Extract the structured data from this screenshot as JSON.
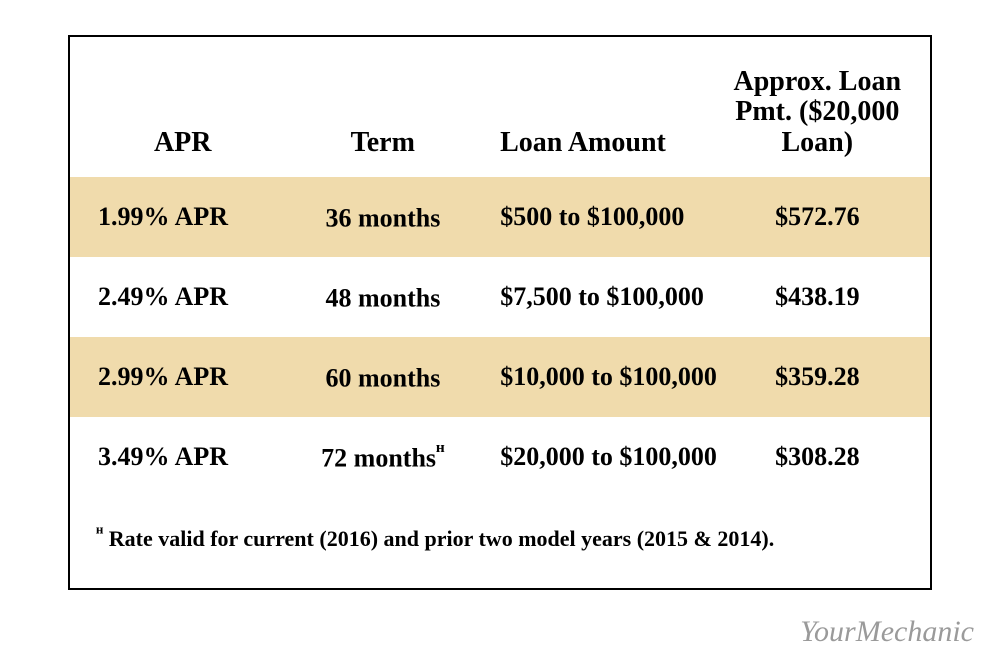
{
  "table": {
    "columns": [
      {
        "key": "apr",
        "label": "APR"
      },
      {
        "key": "term",
        "label": "Term"
      },
      {
        "key": "amount",
        "label": "Loan Amount"
      },
      {
        "key": "pmt",
        "label": "Approx. Loan Pmt. ($20,000 Loan)"
      }
    ],
    "rows": [
      {
        "apr": "1.99% APR",
        "term": "36 months",
        "term_note": "",
        "amount": "$500 to $100,000",
        "pmt": "$572.76",
        "highlight": true
      },
      {
        "apr": "2.49% APR",
        "term": "48 months",
        "term_note": "",
        "amount": "$7,500 to $100,000",
        "pmt": "$438.19",
        "highlight": false
      },
      {
        "apr": "2.99% APR",
        "term": "60 months",
        "term_note": "",
        "amount": "$10,000 to $100,000",
        "pmt": "$359.28",
        "highlight": true
      },
      {
        "apr": "3.49% APR",
        "term": "72 months",
        "term_note": "ᴴ",
        "amount": "$20,000 to $100,000",
        "pmt": "$308.28",
        "highlight": false
      }
    ],
    "footnote_marker": "ᴴ",
    "footnote_text": " Rate valid for current (2016) and prior two model years (2015 & 2014).",
    "highlight_color": "#f0dbac",
    "border_color": "#000000",
    "text_color": "#000000",
    "background_color": "#ffffff",
    "header_fontsize_pt": 21,
    "body_fontsize_pt": 20,
    "footnote_fontsize_pt": 17
  },
  "watermark": "YourMechanic",
  "watermark_color": "#9a9a9a"
}
